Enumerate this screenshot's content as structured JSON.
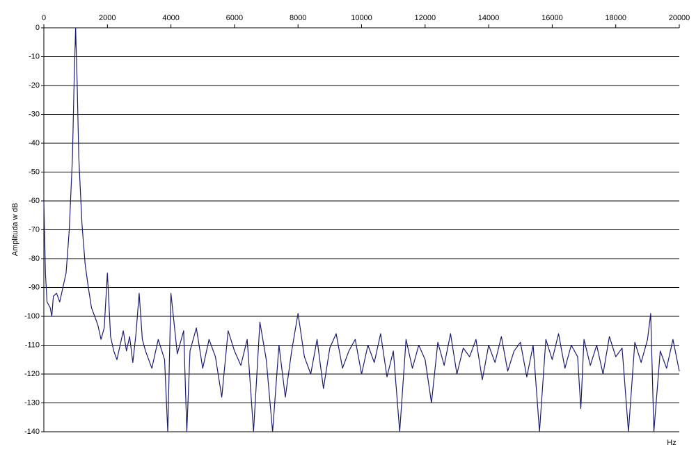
{
  "chart_data": {
    "type": "line",
    "x_label": "Hz",
    "y_label": "Amplituda w dB",
    "color": "#1c1c6e",
    "x": [
      0,
      50,
      100,
      200,
      250,
      300,
      400,
      500,
      600,
      700,
      800,
      900,
      950,
      1000,
      1050,
      1100,
      1200,
      1300,
      1400,
      1500,
      1600,
      1700,
      1800,
      1900,
      2000,
      2100,
      2200,
      2300,
      2400,
      2500,
      2600,
      2700,
      2800,
      2900,
      3000,
      3100,
      3200,
      3400,
      3600,
      3800,
      3900,
      4000,
      4200,
      4400,
      4500,
      4600,
      4800,
      5000,
      5200,
      5400,
      5600,
      5800,
      6000,
      6200,
      6400,
      6600,
      6800,
      7000,
      7200,
      7400,
      7600,
      7800,
      8000,
      8200,
      8400,
      8600,
      8800,
      9000,
      9200,
      9400,
      9600,
      9800,
      10000,
      10200,
      10400,
      10600,
      10800,
      11000,
      11200,
      11400,
      11600,
      11800,
      12000,
      12200,
      12400,
      12600,
      12800,
      13000,
      13200,
      13400,
      13600,
      13800,
      14000,
      14200,
      14400,
      14600,
      14800,
      15000,
      15200,
      15400,
      15600,
      15800,
      16000,
      16200,
      16400,
      16600,
      16800,
      16900,
      17000,
      17200,
      17400,
      17600,
      17800,
      18000,
      18200,
      18400,
      18600,
      18800,
      19000,
      19100,
      19200,
      19400,
      19600,
      19800,
      20000
    ],
    "values": [
      -60,
      -85,
      -95,
      -97,
      -100,
      -93,
      -92,
      -95,
      -90,
      -85,
      -70,
      -45,
      -20,
      0,
      -20,
      -45,
      -68,
      -82,
      -90,
      -97,
      -100,
      -103,
      -108,
      -104,
      -85,
      -107,
      -112,
      -115,
      -110,
      -105,
      -112,
      -107,
      -116,
      -106,
      -92,
      -108,
      -112,
      -118,
      -108,
      -115,
      -140,
      -92,
      -113,
      -105,
      -140,
      -112,
      -104,
      -118,
      -108,
      -114,
      -128,
      -105,
      -112,
      -117,
      -108,
      -140,
      -102,
      -115,
      -140,
      -110,
      -128,
      -112,
      -99,
      -114,
      -120,
      -108,
      -125,
      -111,
      -106,
      -118,
      -112,
      -108,
      -120,
      -110,
      -116,
      -106,
      -121,
      -112,
      -140,
      -108,
      -118,
      -110,
      -115,
      -130,
      -109,
      -117,
      -106,
      -120,
      -111,
      -114,
      -108,
      -122,
      -110,
      -116,
      -107,
      -119,
      -112,
      -109,
      -121,
      -110,
      -140,
      -108,
      -115,
      -106,
      -118,
      -110,
      -114,
      -132,
      -108,
      -117,
      -110,
      -120,
      -107,
      -114,
      -111,
      -140,
      -109,
      -116,
      -108,
      -99,
      -140,
      -112,
      -118,
      -108,
      -119
    ],
    "xlim": [
      0,
      20000
    ],
    "xticks": [
      0,
      2000,
      4000,
      6000,
      8000,
      10000,
      12000,
      14000,
      16000,
      18000,
      20000
    ],
    "ylim": [
      -140,
      0
    ],
    "yticks": [
      0,
      -10,
      -20,
      -30,
      -40,
      -50,
      -60,
      -70,
      -80,
      -90,
      -100,
      -110,
      -120,
      -130,
      -140
    ],
    "grid": true
  }
}
